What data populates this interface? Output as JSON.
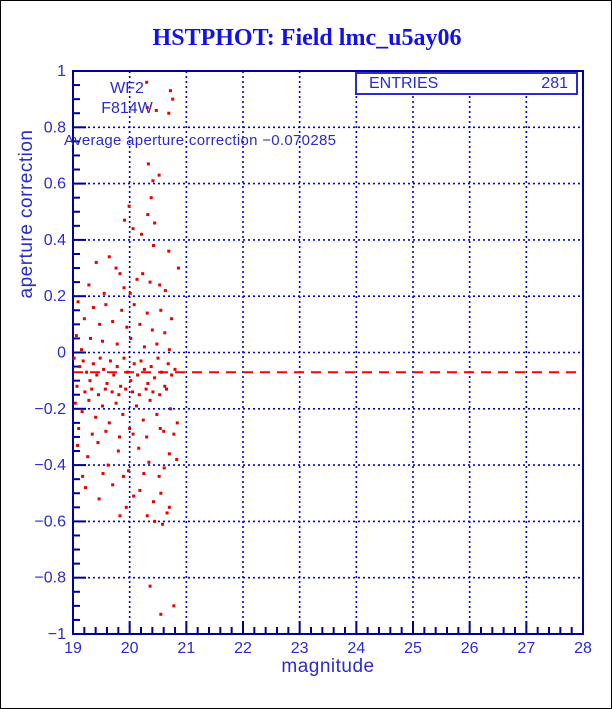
{
  "window": {
    "background": "#ffffff",
    "border_color": "#000000"
  },
  "chart_data": {
    "type": "scatter",
    "title": "HSTPHOT: Field lmc_u5ay06",
    "xlabel": "magnitude",
    "ylabel": "aperture correction",
    "xlim": [
      19,
      28
    ],
    "ylim": [
      -1,
      1
    ],
    "grid": true,
    "x_ticks": [
      {
        "v": 19,
        "label": "19"
      },
      {
        "v": 20,
        "label": "20"
      },
      {
        "v": 21,
        "label": "21"
      },
      {
        "v": 22,
        "label": "22"
      },
      {
        "v": 23,
        "label": "23"
      },
      {
        "v": 24,
        "label": "24"
      },
      {
        "v": 25,
        "label": "25"
      },
      {
        "v": 26,
        "label": "26"
      },
      {
        "v": 27,
        "label": "27"
      },
      {
        "v": 28,
        "label": "28"
      }
    ],
    "y_ticks": [
      {
        "v": 1,
        "label": "1"
      },
      {
        "v": 0.8,
        "label": "0.8"
      },
      {
        "v": 0.6,
        "label": "0.6"
      },
      {
        "v": 0.4,
        "label": "0.4"
      },
      {
        "v": 0.2,
        "label": "0.2"
      },
      {
        "v": 0,
        "label": "0"
      },
      {
        "v": -0.2,
        "label": "−0.2"
      },
      {
        "v": -0.4,
        "label": "−0.4"
      },
      {
        "v": -0.6,
        "label": "−0.6"
      },
      {
        "v": -0.8,
        "label": "−0.8"
      },
      {
        "v": -1,
        "label": "−1"
      }
    ],
    "x_minor_step": 0.2,
    "y_minor_step": 0.05,
    "legend": {
      "label": "ENTRIES",
      "value": "281",
      "position": "top-right"
    },
    "annotations": {
      "camera": "WF2",
      "filter": "F814W",
      "average_text": "Average aperture correction −0.070285"
    },
    "average_value": -0.070285,
    "colors": {
      "title": "#1212e6",
      "frame": "#000099",
      "grid": "#0000dd",
      "text": "#2b2bcc",
      "points": "#e60000",
      "average_line": "#ff0000"
    },
    "points": [
      [
        20.3,
        0.96
      ],
      [
        20.72,
        0.93
      ],
      [
        20.76,
        0.9
      ],
      [
        20.31,
        0.87
      ],
      [
        20.47,
        0.86
      ],
      [
        20.69,
        0.85
      ],
      [
        20.33,
        0.67
      ],
      [
        20.52,
        0.63
      ],
      [
        20.41,
        0.61
      ],
      [
        20.38,
        0.55
      ],
      [
        20.32,
        0.49
      ],
      [
        19.99,
        0.52
      ],
      [
        19.91,
        0.47
      ],
      [
        20.44,
        0.46
      ],
      [
        20.21,
        0.42
      ],
      [
        20.06,
        0.44
      ],
      [
        19.41,
        0.32
      ],
      [
        19.64,
        0.34
      ],
      [
        20.42,
        0.38
      ],
      [
        20.69,
        0.36
      ],
      [
        20.86,
        0.3
      ],
      [
        20.13,
        0.26
      ],
      [
        19.76,
        0.3
      ],
      [
        19.83,
        0.28
      ],
      [
        20.23,
        0.28
      ],
      [
        20.36,
        0.25
      ],
      [
        20.53,
        0.24
      ],
      [
        19.9,
        0.23
      ],
      [
        20.01,
        0.21
      ],
      [
        19.28,
        0.24
      ],
      [
        20.63,
        0.22
      ],
      [
        19.55,
        0.21
      ],
      [
        19.09,
        0.18
      ],
      [
        19.36,
        0.16
      ],
      [
        19.58,
        0.17
      ],
      [
        19.86,
        0.15
      ],
      [
        20.08,
        0.17
      ],
      [
        20.31,
        0.14
      ],
      [
        20.55,
        0.15
      ],
      [
        20.74,
        0.12
      ],
      [
        19.2,
        0.12
      ],
      [
        19.47,
        0.1
      ],
      [
        19.7,
        0.11
      ],
      [
        19.95,
        0.09
      ],
      [
        20.18,
        0.1
      ],
      [
        20.4,
        0.08
      ],
      [
        20.62,
        0.07
      ],
      [
        19.06,
        0.06
      ],
      [
        19.31,
        0.05
      ],
      [
        19.52,
        0.04
      ],
      [
        19.78,
        0.03
      ],
      [
        20.02,
        0.05
      ],
      [
        20.26,
        0.02
      ],
      [
        20.48,
        0.03
      ],
      [
        20.7,
        0.01
      ],
      [
        19.15,
        0.01
      ],
      [
        19.02,
        -0.02
      ],
      [
        19.12,
        -0.05
      ],
      [
        19.18,
        -0.03
      ],
      [
        19.24,
        -0.07
      ],
      [
        19.3,
        -0.1
      ],
      [
        19.36,
        -0.04
      ],
      [
        19.42,
        -0.08
      ],
      [
        19.48,
        -0.02
      ],
      [
        19.54,
        -0.06
      ],
      [
        19.6,
        -0.11
      ],
      [
        19.66,
        -0.03
      ],
      [
        19.72,
        -0.08
      ],
      [
        19.78,
        -0.05
      ],
      [
        19.84,
        -0.12
      ],
      [
        19.9,
        -0.02
      ],
      [
        19.96,
        -0.07
      ],
      [
        20.02,
        -0.1
      ],
      [
        20.08,
        -0.04
      ],
      [
        20.14,
        -0.08
      ],
      [
        20.2,
        -0.03
      ],
      [
        20.26,
        -0.06
      ],
      [
        20.32,
        -0.11
      ],
      [
        20.38,
        -0.05
      ],
      [
        20.44,
        -0.09
      ],
      [
        20.5,
        -0.02
      ],
      [
        20.56,
        -0.07
      ],
      [
        20.62,
        -0.12
      ],
      [
        20.68,
        -0.04
      ],
      [
        20.74,
        -0.08
      ],
      [
        20.8,
        -0.06
      ],
      [
        19.07,
        -0.12
      ],
      [
        19.21,
        -0.14
      ],
      [
        19.33,
        -0.13
      ],
      [
        19.45,
        -0.15
      ],
      [
        19.57,
        -0.13
      ],
      [
        19.69,
        -0.14
      ],
      [
        19.81,
        -0.15
      ],
      [
        19.93,
        -0.13
      ],
      [
        20.05,
        -0.14
      ],
      [
        20.17,
        -0.15
      ],
      [
        20.29,
        -0.13
      ],
      [
        20.41,
        -0.14
      ],
      [
        20.53,
        -0.15
      ],
      [
        20.65,
        -0.13
      ],
      [
        19.04,
        -0.18
      ],
      [
        19.16,
        -0.21
      ],
      [
        19.28,
        -0.17
      ],
      [
        19.4,
        -0.23
      ],
      [
        19.52,
        -0.19
      ],
      [
        19.64,
        -0.25
      ],
      [
        19.76,
        -0.18
      ],
      [
        19.88,
        -0.22
      ],
      [
        20,
        -0.27
      ],
      [
        20.12,
        -0.19
      ],
      [
        20.24,
        -0.24
      ],
      [
        20.36,
        -0.17
      ],
      [
        20.48,
        -0.22
      ],
      [
        20.6,
        -0.28
      ],
      [
        20.72,
        -0.2
      ],
      [
        20.84,
        -0.25
      ],
      [
        19.1,
        -0.27
      ],
      [
        19.34,
        -0.29
      ],
      [
        19.58,
        -0.28
      ],
      [
        19.82,
        -0.3
      ],
      [
        20.06,
        -0.29
      ],
      [
        20.3,
        -0.3
      ],
      [
        20.54,
        -0.27
      ],
      [
        20.78,
        -0.29
      ],
      [
        19.08,
        -0.33
      ],
      [
        19.26,
        -0.37
      ],
      [
        19.44,
        -0.32
      ],
      [
        19.62,
        -0.4
      ],
      [
        19.8,
        -0.35
      ],
      [
        19.98,
        -0.42
      ],
      [
        20.16,
        -0.34
      ],
      [
        20.34,
        -0.39
      ],
      [
        20.52,
        -0.44
      ],
      [
        20.7,
        -0.36
      ],
      [
        19.17,
        -0.44
      ],
      [
        19.53,
        -0.43
      ],
      [
        19.89,
        -0.44
      ],
      [
        20.25,
        -0.43
      ],
      [
        20.61,
        -0.41
      ],
      [
        20.83,
        -0.38
      ],
      [
        19.22,
        -0.48
      ],
      [
        19.46,
        -0.52
      ],
      [
        19.7,
        -0.47
      ],
      [
        19.94,
        -0.55
      ],
      [
        20.18,
        -0.49
      ],
      [
        20.42,
        -0.53
      ],
      [
        20.66,
        -0.57
      ],
      [
        20.31,
        -0.58
      ],
      [
        20.07,
        -0.51
      ],
      [
        19.83,
        -0.58
      ],
      [
        20.55,
        -0.5
      ],
      [
        20.44,
        -0.6
      ],
      [
        20.58,
        -0.61
      ],
      [
        20.7,
        -0.55
      ],
      [
        20.36,
        -0.83
      ],
      [
        20.78,
        -0.9
      ],
      [
        20.55,
        -0.93
      ]
    ]
  }
}
